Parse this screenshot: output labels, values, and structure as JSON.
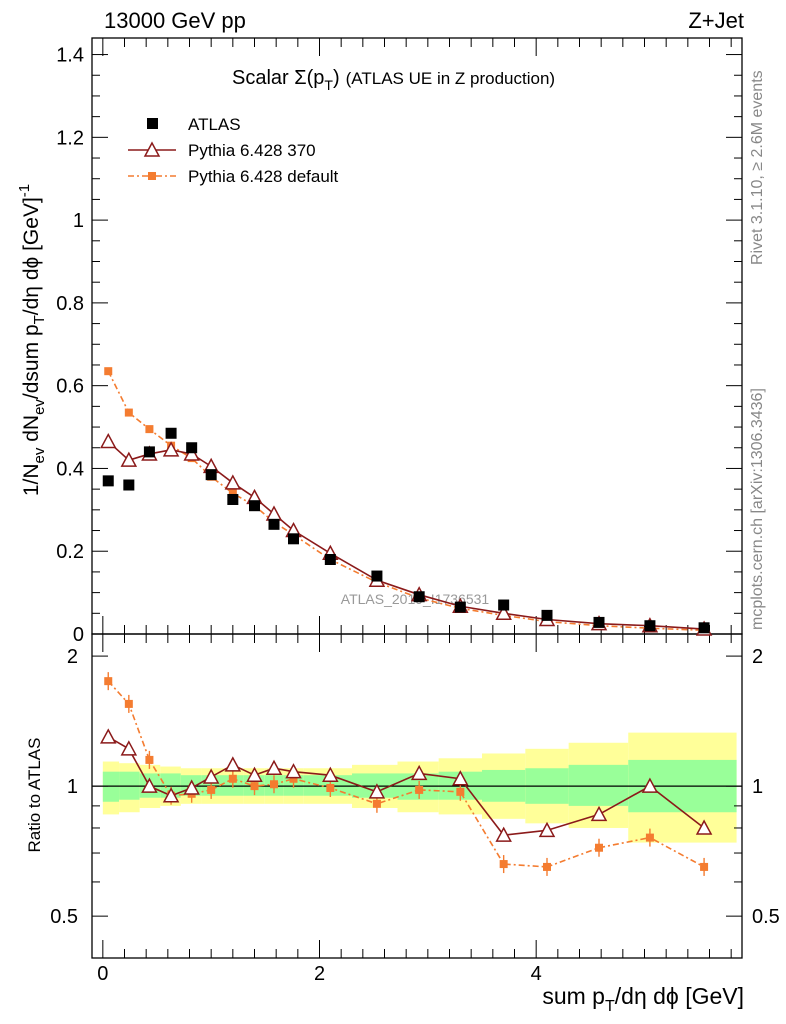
{
  "header": {
    "left": "13000 GeV pp",
    "right": "Z+Jet"
  },
  "side": {
    "rivet": "Rivet 3.1.10, ≥ 2.6M events",
    "mcplots": "mcplots.cern.ch [arXiv:1306.3436]"
  },
  "watermark": "ATLAS_2019_I1736531",
  "colors": {
    "data": "#000000",
    "mc370": "#8b1a1a",
    "mcdef": "#f47c30",
    "band_inner": "#99ff99",
    "band_outer": "#ffff99"
  },
  "chart_data": [
    {
      "type": "scatter",
      "title_main": "Scalar Σ(p",
      "title_sub": "T",
      "title_end": ")",
      "title_rest": "(ATLAS UE in Z production)",
      "ylabel": "1/N_ev dN_ev/dsum p_T/dη dϕ [GeV]^-1",
      "xlim": [
        -0.1,
        5.9
      ],
      "ylim": [
        0,
        1.44
      ],
      "yticks": [
        0,
        0.2,
        0.4,
        0.6,
        0.8,
        1,
        1.2,
        1.4
      ],
      "ytick_labels": [
        "0",
        "0.2",
        "0.4",
        "0.6",
        "0.8",
        "1",
        "1.2",
        "1.4"
      ],
      "legend": [
        "ATLAS",
        "Pythia 6.428 370",
        "Pythia 6.428 default"
      ],
      "x": [
        0.05,
        0.24,
        0.43,
        0.63,
        0.82,
        1.0,
        1.2,
        1.4,
        1.58,
        1.76,
        2.1,
        2.53,
        2.92,
        3.3,
        3.7,
        4.1,
        4.58,
        5.05,
        5.55
      ],
      "series": [
        {
          "name": "ATLAS",
          "values": [
            0.37,
            0.36,
            0.44,
            0.485,
            0.45,
            0.385,
            0.325,
            0.31,
            0.265,
            0.23,
            0.18,
            0.14,
            0.09,
            0.065,
            0.07,
            0.045,
            0.028,
            0.02,
            0.015
          ]
        },
        {
          "name": "Pythia 6.428 370",
          "values": [
            0.465,
            0.42,
            0.435,
            0.445,
            0.435,
            0.405,
            0.365,
            0.33,
            0.29,
            0.25,
            0.195,
            0.13,
            0.095,
            0.067,
            0.05,
            0.035,
            0.025,
            0.02,
            0.012
          ]
        },
        {
          "name": "Pythia 6.428 default",
          "values": [
            0.635,
            0.535,
            0.495,
            0.455,
            0.425,
            0.38,
            0.34,
            0.31,
            0.27,
            0.24,
            0.18,
            0.125,
            0.087,
            0.062,
            0.045,
            0.03,
            0.02,
            0.014,
            0.009
          ]
        }
      ]
    },
    {
      "type": "scatter",
      "ylabel": "Ratio to ATLAS",
      "xlabel": "sum p_T/dη dϕ [GeV]",
      "xlim": [
        -0.1,
        5.9
      ],
      "ylim": [
        0.4,
        2.25
      ],
      "yticks": [
        0.5,
        1,
        2
      ],
      "ytick_labels": [
        "0.5",
        "1",
        "2"
      ],
      "xticks": [
        0,
        2,
        4
      ],
      "xtick_labels": [
        "0",
        "2",
        "4"
      ],
      "x": [
        0.05,
        0.24,
        0.43,
        0.63,
        0.82,
        1.0,
        1.2,
        1.4,
        1.58,
        1.76,
        2.1,
        2.53,
        2.92,
        3.3,
        3.7,
        4.1,
        4.58,
        5.05,
        5.55
      ],
      "series": [
        {
          "name": "Pythia 6.428 370",
          "values": [
            1.3,
            1.22,
            1.0,
            0.95,
            0.99,
            1.05,
            1.12,
            1.06,
            1.1,
            1.08,
            1.06,
            0.97,
            1.07,
            1.04,
            0.77,
            0.79,
            0.86,
            1.0,
            0.8
          ]
        },
        {
          "name": "Pythia 6.428 default",
          "values": [
            1.75,
            1.55,
            1.15,
            0.95,
            0.96,
            0.98,
            1.04,
            1.0,
            1.01,
            1.04,
            0.99,
            0.91,
            0.98,
            0.97,
            0.66,
            0.65,
            0.72,
            0.76,
            0.65
          ]
        }
      ],
      "band_edges": [
        0,
        0.15,
        0.34,
        0.53,
        0.72,
        0.91,
        1.1,
        1.3,
        1.49,
        1.67,
        1.85,
        2.3,
        2.72,
        3.1,
        3.5,
        3.9,
        4.3,
        4.85,
        5.85
      ],
      "band_inner": [
        [
          0.92,
          1.08
        ],
        [
          0.93,
          1.08
        ],
        [
          0.94,
          1.07
        ],
        [
          0.94,
          1.07
        ],
        [
          0.95,
          1.06
        ],
        [
          0.95,
          1.06
        ],
        [
          0.95,
          1.06
        ],
        [
          0.95,
          1.06
        ],
        [
          0.95,
          1.06
        ],
        [
          0.95,
          1.06
        ],
        [
          0.95,
          1.06
        ],
        [
          0.94,
          1.07
        ],
        [
          0.93,
          1.07
        ],
        [
          0.93,
          1.08
        ],
        [
          0.92,
          1.09
        ],
        [
          0.91,
          1.1
        ],
        [
          0.9,
          1.12
        ],
        [
          0.87,
          1.15
        ]
      ],
      "band_outer": [
        [
          0.86,
          1.14
        ],
        [
          0.87,
          1.13
        ],
        [
          0.89,
          1.12
        ],
        [
          0.9,
          1.11
        ],
        [
          0.91,
          1.1
        ],
        [
          0.91,
          1.1
        ],
        [
          0.91,
          1.1
        ],
        [
          0.91,
          1.1
        ],
        [
          0.91,
          1.1
        ],
        [
          0.91,
          1.1
        ],
        [
          0.91,
          1.1
        ],
        [
          0.89,
          1.12
        ],
        [
          0.87,
          1.14
        ],
        [
          0.86,
          1.16
        ],
        [
          0.84,
          1.19
        ],
        [
          0.82,
          1.22
        ],
        [
          0.8,
          1.26
        ],
        [
          0.74,
          1.33
        ]
      ]
    }
  ]
}
